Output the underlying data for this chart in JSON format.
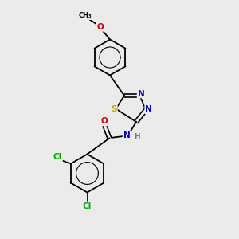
{
  "bg_color": "#ebebeb",
  "bond_color": "#000000",
  "atom_colors": {
    "C": "#000000",
    "N": "#0000cc",
    "O": "#cc0000",
    "S": "#bbaa00",
    "Cl": "#00aa00",
    "H": "#777777"
  },
  "figsize": [
    3.0,
    3.0
  ],
  "dpi": 100
}
